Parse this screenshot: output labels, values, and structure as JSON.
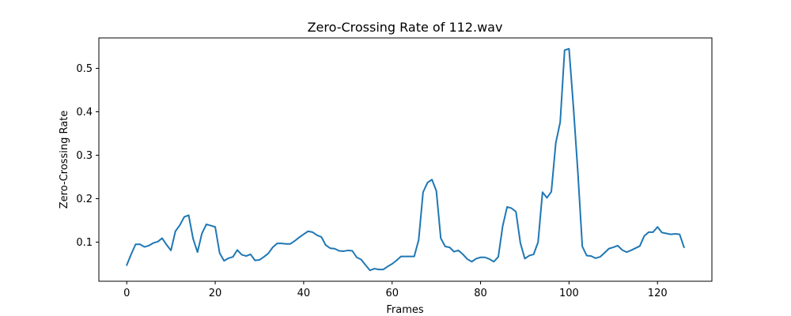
{
  "chart_data": {
    "type": "line",
    "title": "Zero-Crossing Rate of 112.wav",
    "xlabel": "Frames",
    "ylabel": "Zero-Crossing Rate",
    "xlim": [
      -6.3,
      132.3
    ],
    "ylim": [
      0.01,
      0.57
    ],
    "xticks": [
      0,
      20,
      40,
      60,
      80,
      100,
      120
    ],
    "yticks": [
      0.1,
      0.2,
      0.3,
      0.4,
      0.5
    ],
    "ytick_labels": [
      "0.1",
      "0.2",
      "0.3",
      "0.4",
      "0.5"
    ],
    "grid": false,
    "line_color": "#1f77b4",
    "series": [
      {
        "values": [
          0.047,
          0.072,
          0.095,
          0.095,
          0.089,
          0.092,
          0.098,
          0.101,
          0.109,
          0.094,
          0.081,
          0.125,
          0.139,
          0.158,
          0.162,
          0.108,
          0.077,
          0.12,
          0.141,
          0.138,
          0.135,
          0.075,
          0.057,
          0.063,
          0.066,
          0.082,
          0.071,
          0.068,
          0.072,
          0.058,
          0.059,
          0.066,
          0.074,
          0.088,
          0.097,
          0.097,
          0.096,
          0.096,
          0.103,
          0.111,
          0.118,
          0.125,
          0.123,
          0.116,
          0.112,
          0.093,
          0.086,
          0.085,
          0.08,
          0.079,
          0.081,
          0.08,
          0.065,
          0.06,
          0.047,
          0.035,
          0.039,
          0.037,
          0.037,
          0.044,
          0.05,
          0.058,
          0.067,
          0.067,
          0.067,
          0.067,
          0.105,
          0.215,
          0.237,
          0.244,
          0.218,
          0.109,
          0.09,
          0.088,
          0.078,
          0.081,
          0.072,
          0.061,
          0.055,
          0.062,
          0.065,
          0.065,
          0.061,
          0.055,
          0.066,
          0.137,
          0.181,
          0.178,
          0.17,
          0.098,
          0.062,
          0.069,
          0.072,
          0.1,
          0.215,
          0.202,
          0.216,
          0.328,
          0.376,
          0.542,
          0.545,
          0.41,
          0.26,
          0.09,
          0.069,
          0.068,
          0.063,
          0.066,
          0.075,
          0.085,
          0.088,
          0.092,
          0.082,
          0.077,
          0.081,
          0.086,
          0.091,
          0.114,
          0.123,
          0.123,
          0.135,
          0.122,
          0.12,
          0.118,
          0.119,
          0.118,
          0.088
        ]
      }
    ]
  }
}
